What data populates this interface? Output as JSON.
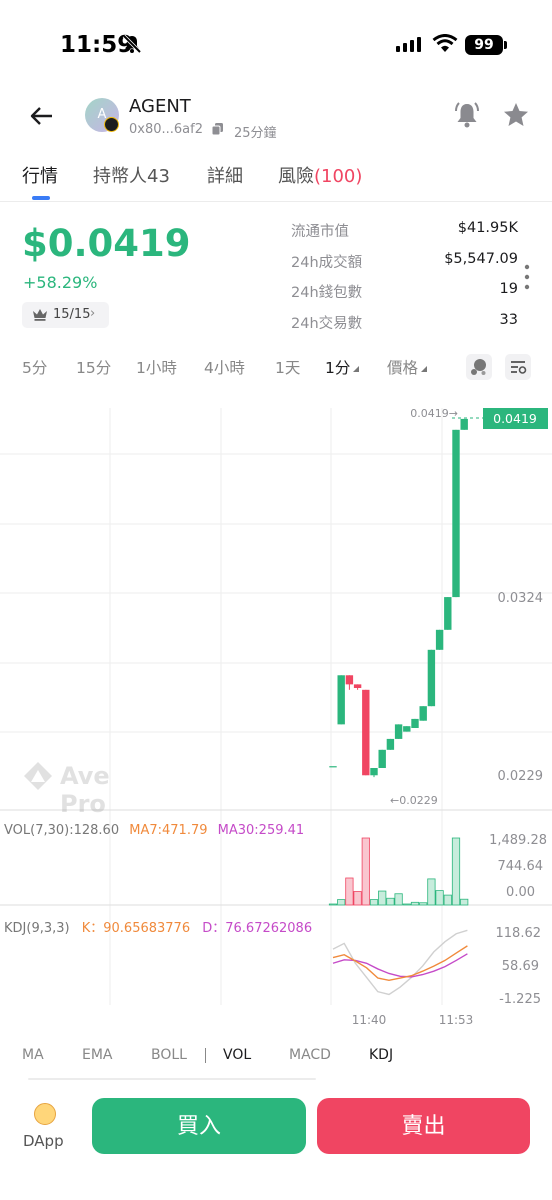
{
  "status_bar": {
    "time": "11:59",
    "battery": "99"
  },
  "token": {
    "name": "AGENT",
    "avatar_letter": "A",
    "address": "0x80...6af2",
    "age": "25分鐘"
  },
  "tabs": [
    {
      "label": "行情"
    },
    {
      "label": "持幣人43"
    },
    {
      "label": "詳細"
    },
    {
      "label": "風險",
      "count": "(100)"
    }
  ],
  "price": {
    "value": "$0.0419",
    "change": "+58.29%",
    "rank": "15/15"
  },
  "stats": [
    {
      "label": "流通市值",
      "value": "$41.95K"
    },
    {
      "label": "24h成交額",
      "value": "$5,547.09"
    },
    {
      "label": "24h錢包數",
      "value": "19"
    },
    {
      "label": "24h交易數",
      "value": "33"
    }
  ],
  "intervals": [
    "5分",
    "15分",
    "1小時",
    "4小時",
    "1天"
  ],
  "interval_selector": "1分",
  "price_selector": "價格",
  "watermark": "Ave Pro",
  "chart_labels": {
    "last_price_tag": "0.0419",
    "last_price_arrow": "0.0419→",
    "low_arrow": "←0.0229",
    "axis_top": "0.0324",
    "axis_bottom": "0.0229",
    "vol_axis": [
      "1,489.28",
      "744.64",
      "0.00"
    ],
    "kdj_axis": [
      "118.62",
      "58.69",
      "-1.225"
    ],
    "time_labels": [
      "11:40",
      "11:53"
    ]
  },
  "vol_legend": {
    "name": "VOL(7,30):128.60",
    "ma7": "MA7:471.79",
    "ma30": "MA30:259.41"
  },
  "kdj_legend": {
    "name": "KDJ(9,3,3)",
    "k": "K：90.65683776",
    "d": "D：76.67262086"
  },
  "indicators": [
    "MA",
    "EMA",
    "BOLL",
    "VOL",
    "MACD",
    "KDJ"
  ],
  "bottom": {
    "dapp": "DApp",
    "buy": "買入",
    "sell": "賣出"
  },
  "chart_data": {
    "type": "candlestick",
    "y_range": [
      0.0205,
      0.0425
    ],
    "candles": [
      {
        "open": 0.0228,
        "close": 0.0228,
        "high": 0.0228,
        "low": 0.0228
      },
      {
        "open": 0.0251,
        "close": 0.0278,
        "high": 0.0278,
        "low": 0.0251
      },
      {
        "open": 0.0278,
        "close": 0.0273,
        "high": 0.0278,
        "low": 0.027
      },
      {
        "open": 0.0273,
        "close": 0.0271,
        "high": 0.0273,
        "low": 0.027
      },
      {
        "open": 0.027,
        "close": 0.0223,
        "high": 0.027,
        "low": 0.0223
      },
      {
        "open": 0.0223,
        "close": 0.0227,
        "high": 0.0227,
        "low": 0.0222
      },
      {
        "open": 0.0227,
        "close": 0.0237,
        "high": 0.0237,
        "low": 0.0227
      },
      {
        "open": 0.0237,
        "close": 0.0243,
        "high": 0.0243,
        "low": 0.0237
      },
      {
        "open": 0.0243,
        "close": 0.0251,
        "high": 0.0251,
        "low": 0.0243
      },
      {
        "open": 0.0247,
        "close": 0.025,
        "high": 0.025,
        "low": 0.0247
      },
      {
        "open": 0.0249,
        "close": 0.0254,
        "high": 0.0254,
        "low": 0.0249
      },
      {
        "open": 0.0253,
        "close": 0.0261,
        "high": 0.0261,
        "low": 0.0253
      },
      {
        "open": 0.0261,
        "close": 0.0292,
        "high": 0.0292,
        "low": 0.0261
      },
      {
        "open": 0.0292,
        "close": 0.0303,
        "high": 0.0303,
        "low": 0.0292
      },
      {
        "open": 0.0303,
        "close": 0.0321,
        "high": 0.0321,
        "low": 0.0303
      },
      {
        "open": 0.0321,
        "close": 0.0413,
        "high": 0.0413,
        "low": 0.0321
      },
      {
        "open": 0.0413,
        "close": 0.0419,
        "high": 0.0419,
        "low": 0.0413
      }
    ],
    "volume": {
      "range": [
        0,
        1489.28
      ],
      "values": [
        0,
        120,
        600,
        300,
        1489,
        120,
        310,
        150,
        250,
        0,
        60,
        50,
        580,
        320,
        220,
        1489,
        128.6
      ],
      "up": [
        true,
        true,
        false,
        false,
        false,
        true,
        true,
        true,
        true,
        true,
        true,
        true,
        true,
        true,
        true,
        true,
        true
      ]
    },
    "kdj": {
      "range": [
        -1.225,
        118.62
      ],
      "k": [
        70,
        75,
        64,
        52,
        34,
        30,
        34,
        38,
        46,
        55,
        65,
        78,
        90.66
      ],
      "d": [
        60,
        66,
        65,
        60,
        50,
        42,
        37,
        36,
        40,
        46,
        54,
        65,
        76.67
      ],
      "j": [
        85,
        95,
        60,
        35,
        10,
        5,
        18,
        35,
        55,
        80,
        98,
        112,
        118
      ]
    }
  }
}
